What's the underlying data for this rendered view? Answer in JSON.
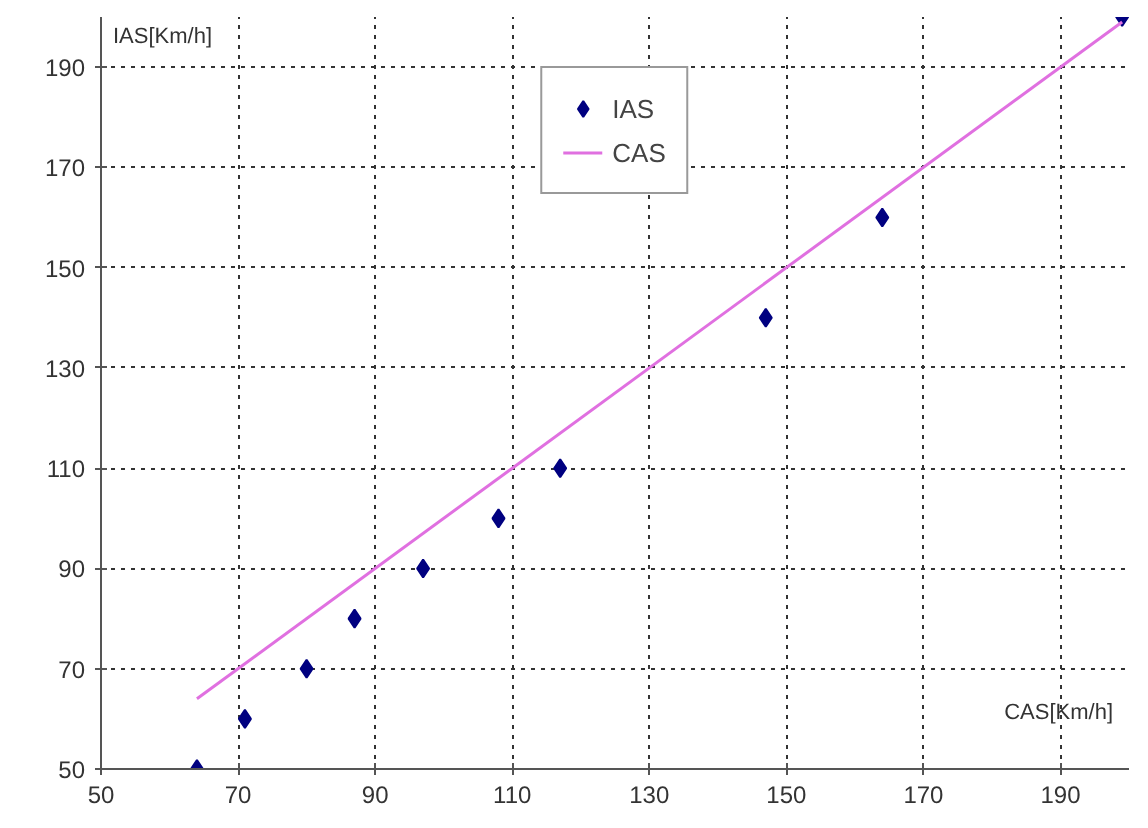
{
  "chart_data": {
    "type": "scatter",
    "xlabel": "CAS[Km/h]",
    "ylabel": "IAS[Km/h]",
    "xlim": [
      50,
      200
    ],
    "ylim": [
      50,
      200
    ],
    "xticks": [
      50,
      70,
      90,
      110,
      130,
      150,
      170,
      190
    ],
    "yticks": [
      50,
      70,
      90,
      110,
      130,
      150,
      170,
      190
    ],
    "grid": true,
    "legend": "top",
    "series": [
      {
        "name": "IAS",
        "marker": "diamond",
        "color": "#000080",
        "x": [
          64,
          71,
          80,
          87,
          97,
          108,
          117,
          147,
          164,
          199
        ],
        "values": [
          50,
          60,
          70,
          80,
          90,
          100,
          110,
          140,
          160,
          200
        ]
      },
      {
        "name": "CAS",
        "type": "line",
        "marker": "none",
        "color": "#e070e0",
        "x": [
          64,
          199
        ],
        "values": [
          64,
          199
        ]
      }
    ]
  }
}
